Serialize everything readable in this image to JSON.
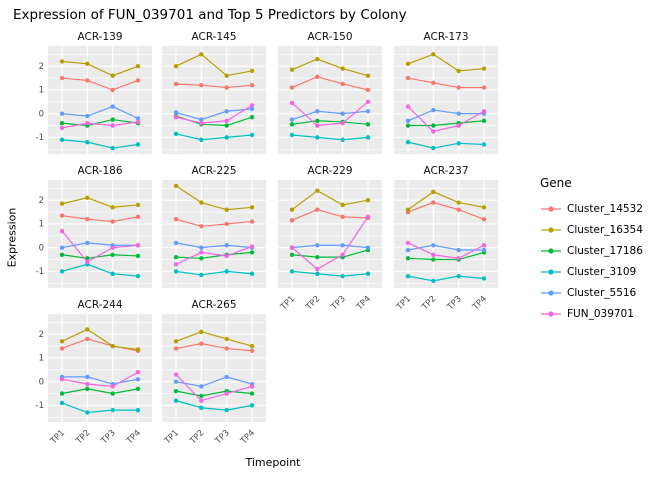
{
  "chart_data": {
    "type": "line",
    "title": "Expression of FUN_039701 and Top 5 Predictors by Colony",
    "xlabel": "Timepoint",
    "ylabel": "Expression",
    "legend_title": "Gene",
    "legend_position": "right",
    "x": [
      "TP1",
      "TP2",
      "TP3",
      "TP4"
    ],
    "ylim": [
      -1.7,
      2.85
    ],
    "yticks": [
      -1,
      0,
      1,
      2
    ],
    "yticks_minor": [
      -1.5,
      -0.5,
      0.5,
      1.5,
      2.5
    ],
    "panel_bg": "#EBEBEB",
    "grid_color": "#FFFFFF",
    "tick_text_color": "#4d4d4d",
    "x_tick_facets": [
      "ACR-229",
      "ACR-237",
      "ACR-244",
      "ACR-265"
    ],
    "series": [
      {
        "name": "Cluster_14532",
        "color": "#F8766D"
      },
      {
        "name": "Cluster_16354",
        "color": "#B79F00"
      },
      {
        "name": "Cluster_17186",
        "color": "#00BA38"
      },
      {
        "name": "Cluster_3109",
        "color": "#00BFC4"
      },
      {
        "name": "Cluster_5516",
        "color": "#619CFF"
      },
      {
        "name": "FUN_039701",
        "color": "#F564E3"
      }
    ],
    "facets": [
      {
        "colony": "ACR-139",
        "values": {
          "Cluster_14532": [
            1.5,
            1.4,
            1.0,
            1.4
          ],
          "Cluster_16354": [
            2.2,
            2.1,
            1.6,
            2.0
          ],
          "Cluster_17186": [
            -0.4,
            -0.5,
            -0.25,
            -0.4
          ],
          "Cluster_3109": [
            -1.1,
            -1.2,
            -1.45,
            -1.3
          ],
          "Cluster_5516": [
            0.0,
            -0.1,
            0.3,
            -0.2
          ],
          "FUN_039701": [
            -0.6,
            -0.4,
            -0.5,
            -0.35
          ]
        }
      },
      {
        "colony": "ACR-145",
        "values": {
          "Cluster_14532": [
            1.25,
            1.2,
            1.1,
            1.2
          ],
          "Cluster_16354": [
            2.0,
            2.5,
            1.6,
            1.8
          ],
          "Cluster_17186": [
            -0.1,
            -0.45,
            -0.5,
            -0.15
          ],
          "Cluster_3109": [
            -0.85,
            -1.1,
            -1.0,
            -0.9
          ],
          "Cluster_5516": [
            0.05,
            -0.25,
            0.1,
            0.2
          ],
          "FUN_039701": [
            -0.15,
            -0.4,
            -0.3,
            0.35
          ]
        }
      },
      {
        "colony": "ACR-150",
        "values": {
          "Cluster_14532": [
            1.1,
            1.55,
            1.25,
            1.0
          ],
          "Cluster_16354": [
            1.85,
            2.3,
            1.9,
            1.6
          ],
          "Cluster_17186": [
            -0.45,
            -0.3,
            -0.35,
            -0.45
          ],
          "Cluster_3109": [
            -0.9,
            -1.0,
            -1.1,
            -1.0
          ],
          "Cluster_5516": [
            -0.25,
            0.1,
            0.0,
            0.1
          ],
          "FUN_039701": [
            0.45,
            -0.5,
            -0.4,
            0.5
          ]
        }
      },
      {
        "colony": "ACR-173",
        "values": {
          "Cluster_14532": [
            1.5,
            1.3,
            1.1,
            1.1
          ],
          "Cluster_16354": [
            2.1,
            2.5,
            1.8,
            1.9
          ],
          "Cluster_17186": [
            -0.5,
            -0.5,
            -0.4,
            -0.3
          ],
          "Cluster_3109": [
            -1.2,
            -1.45,
            -1.25,
            -1.3
          ],
          "Cluster_5516": [
            -0.3,
            0.15,
            0.0,
            0.0
          ],
          "FUN_039701": [
            0.3,
            -0.75,
            -0.5,
            0.1
          ]
        }
      },
      {
        "colony": "ACR-186",
        "values": {
          "Cluster_14532": [
            1.35,
            1.2,
            1.1,
            1.3
          ],
          "Cluster_16354": [
            1.85,
            2.1,
            1.7,
            1.8
          ],
          "Cluster_17186": [
            -0.3,
            -0.45,
            -0.3,
            -0.35
          ],
          "Cluster_3109": [
            -1.0,
            -0.7,
            -1.1,
            -1.2
          ],
          "Cluster_5516": [
            0.0,
            0.2,
            0.1,
            0.1
          ],
          "FUN_039701": [
            0.7,
            -0.6,
            0.0,
            0.1
          ]
        }
      },
      {
        "colony": "ACR-225",
        "values": {
          "Cluster_14532": [
            1.2,
            0.9,
            1.0,
            1.1
          ],
          "Cluster_16354": [
            2.6,
            1.9,
            1.6,
            1.7
          ],
          "Cluster_17186": [
            -0.4,
            -0.45,
            -0.3,
            -0.2
          ],
          "Cluster_3109": [
            -1.0,
            -1.15,
            -1.0,
            -1.1
          ],
          "Cluster_5516": [
            0.2,
            0.0,
            0.1,
            0.0
          ],
          "FUN_039701": [
            -0.7,
            -0.2,
            -0.35,
            0.05
          ]
        }
      },
      {
        "colony": "ACR-229",
        "values": {
          "Cluster_14532": [
            1.15,
            1.6,
            1.3,
            1.25
          ],
          "Cluster_16354": [
            1.6,
            2.4,
            1.8,
            2.0
          ],
          "Cluster_17186": [
            -0.3,
            -0.4,
            -0.4,
            -0.1
          ],
          "Cluster_3109": [
            -1.0,
            -1.1,
            -1.2,
            -1.1
          ],
          "Cluster_5516": [
            0.0,
            0.1,
            0.1,
            0.0
          ],
          "FUN_039701": [
            0.0,
            -0.9,
            -0.3,
            1.3
          ]
        }
      },
      {
        "colony": "ACR-237",
        "values": {
          "Cluster_14532": [
            1.5,
            1.9,
            1.6,
            1.2
          ],
          "Cluster_16354": [
            1.6,
            2.35,
            1.9,
            1.7
          ],
          "Cluster_17186": [
            -0.45,
            -0.5,
            -0.5,
            -0.2
          ],
          "Cluster_3109": [
            -1.2,
            -1.4,
            -1.2,
            -1.3
          ],
          "Cluster_5516": [
            -0.1,
            0.1,
            -0.1,
            -0.1
          ],
          "FUN_039701": [
            0.2,
            -0.3,
            -0.45,
            0.1
          ]
        }
      },
      {
        "colony": "ACR-244",
        "values": {
          "Cluster_14532": [
            1.4,
            1.8,
            1.5,
            1.3
          ],
          "Cluster_16354": [
            1.7,
            2.2,
            1.5,
            1.35
          ],
          "Cluster_17186": [
            -0.5,
            -0.3,
            -0.5,
            -0.3
          ],
          "Cluster_3109": [
            -0.9,
            -1.3,
            -1.2,
            -1.2
          ],
          "Cluster_5516": [
            0.2,
            0.2,
            -0.1,
            0.1
          ],
          "FUN_039701": [
            0.1,
            -0.1,
            -0.2,
            0.4
          ]
        }
      },
      {
        "colony": "ACR-265",
        "values": {
          "Cluster_14532": [
            1.4,
            1.6,
            1.4,
            1.3
          ],
          "Cluster_16354": [
            1.7,
            2.1,
            1.8,
            1.5
          ],
          "Cluster_17186": [
            -0.4,
            -0.6,
            -0.4,
            -0.5
          ],
          "Cluster_3109": [
            -0.8,
            -1.1,
            -1.2,
            -1.0
          ],
          "Cluster_5516": [
            0.0,
            -0.2,
            0.2,
            -0.1
          ],
          "FUN_039701": [
            0.3,
            -0.8,
            -0.5,
            -0.2
          ]
        }
      }
    ]
  }
}
